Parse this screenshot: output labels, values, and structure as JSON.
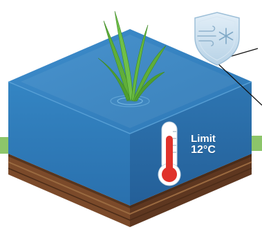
{
  "temperature_limit": {
    "word": "Limit",
    "value": "12°C"
  },
  "icons": {
    "frost_protection": "shield-snowflake-wind-icon",
    "thermometer": "thermometer-icon",
    "plant": "rice-seedling-icon"
  },
  "colors": {
    "water_top": "#3f8fc7",
    "water_front": "#2f78b4",
    "water_side": "#2a6ca6",
    "soil": "#7a4a2a",
    "grass_strip": "#8cc56a",
    "plant": "#5fae3a",
    "thermometer_red": "#e0322b",
    "shield": "#bcd7ea"
  }
}
